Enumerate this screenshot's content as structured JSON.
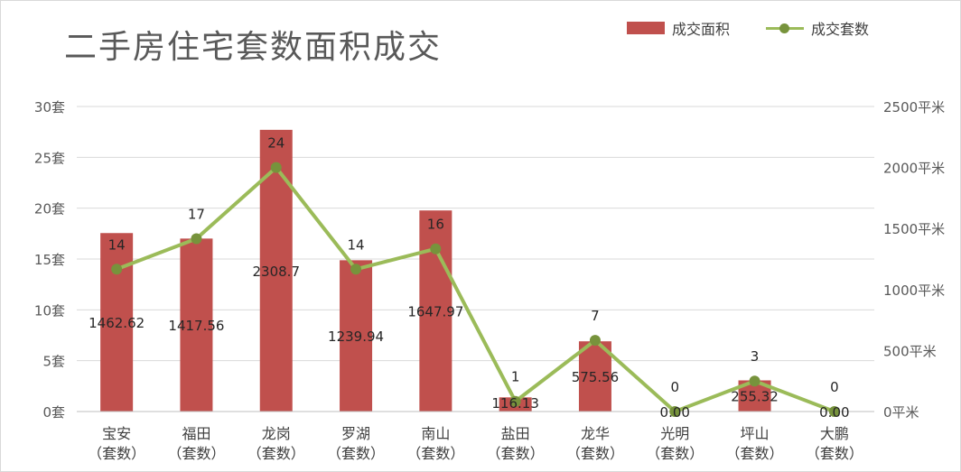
{
  "chart_data": {
    "type": "bar",
    "title": "二手房住宅套数面积成交",
    "legend": [
      "成交面积",
      "成交套数"
    ],
    "legend_position": "top-right",
    "categories": [
      "宝安",
      "福田",
      "龙岗",
      "罗湖",
      "南山",
      "盐田",
      "龙华",
      "光明",
      "坪山",
      "大鹏"
    ],
    "category_suffix": "（套数）",
    "series": [
      {
        "name": "成交面积",
        "type": "bar",
        "axis": "right",
        "values": [
          1462.62,
          1417.56,
          2308.7,
          1239.94,
          1647.97,
          116.13,
          575.56,
          0.0,
          255.32,
          0.0
        ],
        "labels": [
          "1462.62",
          "1417.56",
          "2308.7",
          "1239.94",
          "1647.97",
          "116.13",
          "575.56",
          "0.00",
          "255.32",
          "0.00"
        ],
        "color": "#c0504d"
      },
      {
        "name": "成交套数",
        "type": "line",
        "axis": "left",
        "values": [
          14,
          17,
          24,
          14,
          16,
          1,
          7,
          0,
          3,
          0
        ],
        "labels": [
          "14",
          "17",
          "24",
          "14",
          "16",
          "1",
          "7",
          "0",
          "3",
          "0"
        ],
        "color": "#9bbb59",
        "marker_color": "#77933c"
      }
    ],
    "y_left": {
      "ylim": [
        0,
        30
      ],
      "ticks": [
        0,
        5,
        10,
        15,
        20,
        25,
        30
      ],
      "tick_labels": [
        "0套",
        "5套",
        "10套",
        "15套",
        "20套",
        "25套",
        "30套"
      ]
    },
    "y_right": {
      "ylim": [
        0,
        2500
      ],
      "ticks": [
        0,
        500,
        1000,
        1500,
        2000,
        2500
      ],
      "tick_labels": [
        "0平米",
        "500平米",
        "1000平米",
        "1500平米",
        "2000平米",
        "2500平米"
      ]
    },
    "grid": true
  }
}
